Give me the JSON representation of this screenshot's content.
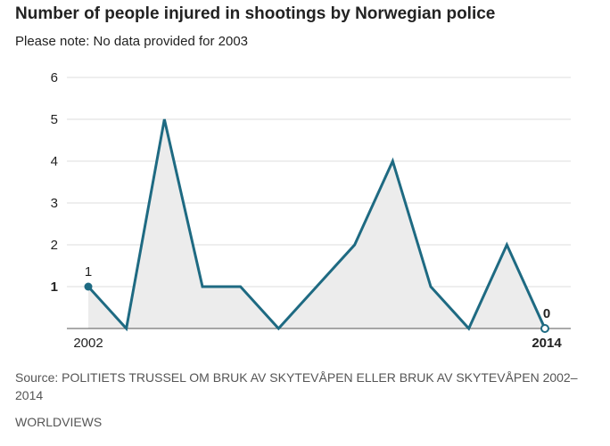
{
  "chart_data": {
    "type": "area",
    "title": "Number of people injured in shootings by Norwegian police",
    "subtitle": "Please note: No data provided for 2003",
    "x": [
      2002,
      2003,
      2004,
      2005,
      2006,
      2007,
      2008,
      2009,
      2010,
      2011,
      2012,
      2013,
      2014
    ],
    "values": [
      1,
      0,
      5,
      1,
      1,
      0,
      1,
      2,
      4,
      1,
      0,
      2,
      0
    ],
    "x_tick_labels": [
      "2002",
      "2014"
    ],
    "y_ticks": [
      1,
      2,
      3,
      4,
      5,
      6
    ],
    "ylim": [
      0,
      6
    ],
    "grid": true,
    "annotations": [
      {
        "x": 2002,
        "label": "1"
      },
      {
        "x": 2014,
        "label": "0"
      }
    ],
    "colors": {
      "line": "#1e6a82",
      "fill": "#ececec",
      "grid": "#dddddd"
    }
  },
  "source": "Source: POLITIETS TRUSSEL OM BRUK AV SKYTEVÅPEN ELLER BRUK AV SKYTEVÅPEN 2002–2014",
  "brand": "WORLDVIEWS"
}
